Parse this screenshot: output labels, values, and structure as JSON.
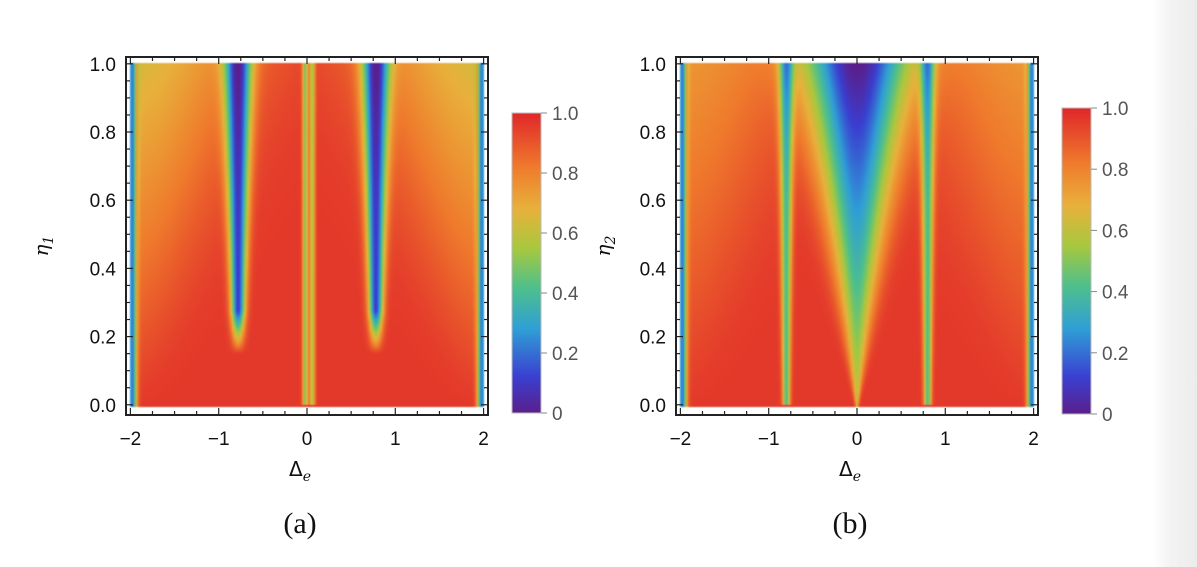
{
  "chart_data": [
    {
      "type": "heatmap",
      "caption": "(a)",
      "xlabel": "Δ",
      "xlabel_sub": "e",
      "ylabel": "η",
      "ylabel_sub": "1",
      "xlim": [
        -2.05,
        2.05
      ],
      "ylim": [
        -0.03,
        1.02
      ],
      "x_ticks": [
        -2,
        -1,
        0,
        1,
        2
      ],
      "x_tick_labels": [
        "−2",
        "−1",
        "0",
        "1",
        "2"
      ],
      "y_ticks": [
        0.0,
        0.2,
        0.4,
        0.6,
        0.8,
        1.0
      ],
      "y_tick_labels": [
        "0.0",
        "0.2",
        "0.4",
        "0.6",
        "0.8",
        "1.0"
      ],
      "data_range": {
        "x": [
          -2,
          2
        ],
        "y": [
          0,
          1
        ]
      },
      "colorbar": {
        "min": 0,
        "max": 1,
        "ticks": [
          0,
          0.2,
          0.4,
          0.6,
          0.8,
          1.0
        ],
        "tick_labels": [
          "0",
          "0.2",
          "0.4",
          "0.6",
          "0.8",
          "1.0"
        ]
      },
      "features": [
        {
          "kind": "dip-line",
          "x0": -0.78,
          "slope": 0.0,
          "width_base": 0.05,
          "width_slope": 0.1,
          "depth": 0.85,
          "y_start": 0.15
        },
        {
          "kind": "dip-line",
          "x0": 0.78,
          "slope": 0.0,
          "width_base": 0.05,
          "width_slope": 0.1,
          "depth": 0.85,
          "y_start": 0.15
        },
        {
          "kind": "dip-line",
          "x0": -0.02,
          "slope": 0.0,
          "width_base": 0.03,
          "width_slope": 0.0,
          "depth": 0.45,
          "y_start": 0.0
        },
        {
          "kind": "dip-line",
          "x0": 0.06,
          "slope": 0.0,
          "width_base": 0.03,
          "width_slope": 0.0,
          "depth": 0.4,
          "y_start": 0.0
        },
        {
          "kind": "edge-dip",
          "x0": -1.98,
          "width": 0.05,
          "depth": 0.75
        },
        {
          "kind": "edge-dip",
          "x0": 1.98,
          "width": 0.05,
          "depth": 0.75
        },
        {
          "kind": "side-dip",
          "x0": -2.0,
          "scale": 0.9
        }
      ]
    },
    {
      "type": "heatmap",
      "caption": "(b)",
      "xlabel": "Δ",
      "xlabel_sub": "e",
      "ylabel": "η",
      "ylabel_sub": "2",
      "xlim": [
        -2.05,
        2.05
      ],
      "ylim": [
        -0.03,
        1.02
      ],
      "x_ticks": [
        -2,
        -1,
        0,
        1,
        2
      ],
      "x_tick_labels": [
        "−2",
        "−1",
        "0",
        "1",
        "2"
      ],
      "y_ticks": [
        0.0,
        0.2,
        0.4,
        0.6,
        0.8,
        1.0
      ],
      "y_tick_labels": [
        "0.0",
        "0.2",
        "0.4",
        "0.6",
        "0.8",
        "1.0"
      ],
      "data_range": {
        "x": [
          -2,
          2
        ],
        "y": [
          0,
          1
        ]
      },
      "colorbar": {
        "min": 0,
        "max": 1,
        "ticks": [
          0,
          0.2,
          0.4,
          0.6,
          0.8,
          1.0
        ],
        "tick_labels": [
          "0",
          "0.2",
          "0.4",
          "0.6",
          "0.8",
          "1.0"
        ]
      },
      "features": [
        {
          "kind": "center-v",
          "x0": 0.0,
          "width_base": 0.02,
          "width_slope": 0.55,
          "depth": 0.95
        },
        {
          "kind": "dip-line",
          "x0": -0.8,
          "slope": 0.0,
          "width_base": 0.04,
          "width_slope": 0.04,
          "depth": 0.55,
          "y_start": 0.0
        },
        {
          "kind": "dip-line",
          "x0": 0.8,
          "slope": 0.0,
          "width_base": 0.04,
          "width_slope": 0.04,
          "depth": 0.55,
          "y_start": 0.0
        },
        {
          "kind": "edge-dip",
          "x0": -1.98,
          "width": 0.05,
          "depth": 0.75
        },
        {
          "kind": "edge-dip",
          "x0": 1.98,
          "width": 0.05,
          "depth": 0.75
        },
        {
          "kind": "side-dip",
          "x0": -2.0,
          "scale": 0.6
        }
      ]
    }
  ]
}
